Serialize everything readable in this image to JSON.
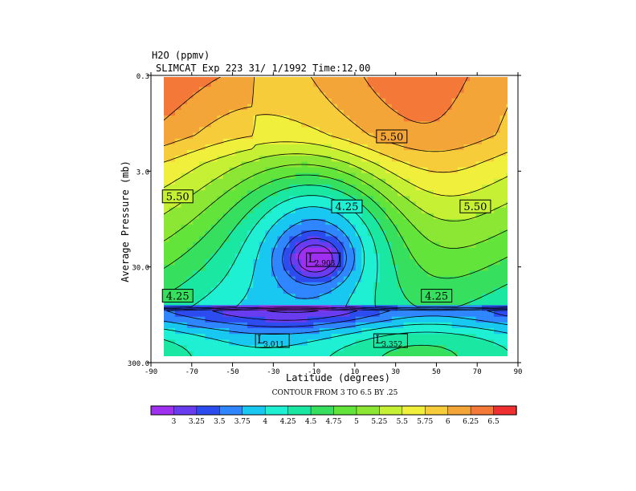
{
  "chart_data": {
    "type": "contour",
    "title": "H2O  (ppmv)",
    "subtitle": "SLIMCAT Exp 223  31/ 1/1992 Time:12.00",
    "xlabel": "Latitude (degrees)",
    "ylabel": "Average Pressure (mb)",
    "x_ticks": [
      -90,
      -70,
      -50,
      -30,
      -10,
      10,
      30,
      50,
      70,
      90
    ],
    "x_tick_labels": [
      "-90",
      "-70",
      "-50",
      "-30",
      "-10",
      "10",
      "30",
      "50",
      "70",
      "90"
    ],
    "y_ticks": [
      0.3,
      3.0,
      30.0,
      300.0
    ],
    "y_tick_labels": [
      "0.3",
      "3.0",
      "30.0",
      "300.0"
    ],
    "y_scale": "log",
    "y_reversed": true,
    "xlim": [
      -90,
      90
    ],
    "ylim": [
      300.0,
      0.3
    ],
    "contour_note": "CONTOUR FROM 3 TO 6.5 BY .25",
    "levels": [
      3,
      3.25,
      3.5,
      3.75,
      4,
      4.25,
      4.5,
      4.75,
      5,
      5.25,
      5.5,
      5.75,
      6,
      6.25,
      6.5
    ],
    "level_labels": [
      "3",
      "3.25",
      "3.5",
      "3.75",
      "4",
      "4.25",
      "4.5",
      "4.75",
      "5",
      "5.25",
      "5.5",
      "5.75",
      "6",
      "6.25",
      "6.5"
    ],
    "colors": [
      "#a030f0",
      "#6a3cf0",
      "#2d4cf0",
      "#2f86ff",
      "#18c8f0",
      "#1ff0d4",
      "#1ae8a2",
      "#36e05e",
      "#62e43a",
      "#8ce634",
      "#c6f034",
      "#f0f03c",
      "#f6cc3a",
      "#f4a538",
      "#f47838",
      "#f03030"
    ],
    "contour_labels": [
      {
        "text": "5.50",
        "lat": 21,
        "p": 1.3
      },
      {
        "text": "5.50",
        "lat": -84,
        "p": 5.5
      },
      {
        "text": "5.50",
        "lat": 62,
        "p": 7.0
      },
      {
        "text": "4.25",
        "lat": -1,
        "p": 7.0
      },
      {
        "text": "4.25",
        "lat": -84,
        "p": 60
      },
      {
        "text": "4.25",
        "lat": 43,
        "p": 60
      }
    ],
    "minima": [
      {
        "symbol": "L",
        "value": "2.903",
        "lat": -9,
        "p": 25
      },
      {
        "symbol": "L",
        "value": "3.011",
        "lat": -34,
        "p": 175
      },
      {
        "symbol": "L",
        "value": "3.352",
        "lat": 24,
        "p": 175
      }
    ]
  }
}
